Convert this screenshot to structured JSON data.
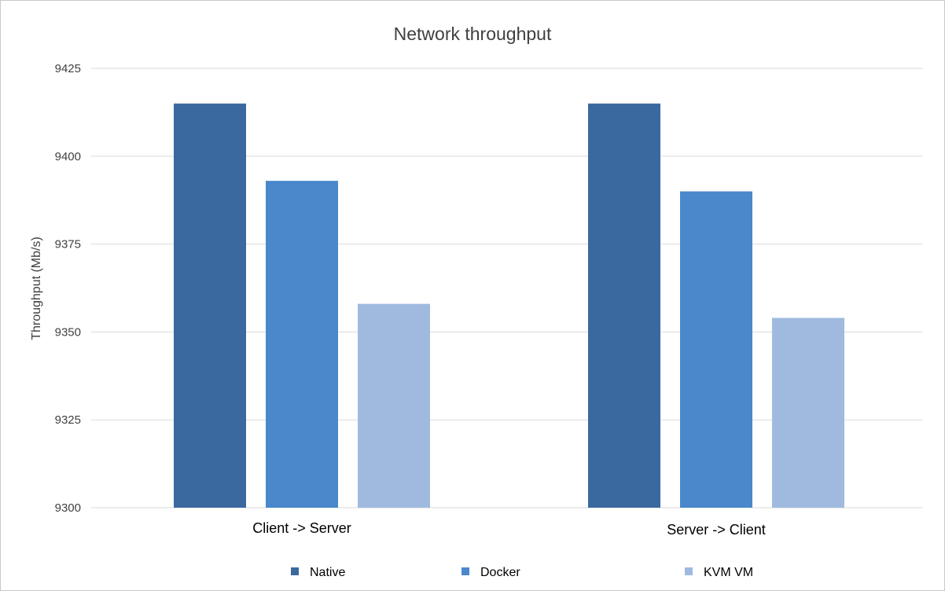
{
  "chart_data": {
    "type": "bar",
    "title": "Network throughput",
    "xlabel": "",
    "ylabel": "Throughput (Mb/s)",
    "categories": [
      "Client -> Server",
      "Server -> Client"
    ],
    "series": [
      {
        "name": "Native",
        "values": [
          9415,
          9415
        ],
        "color": "#3a69a0"
      },
      {
        "name": "Docker",
        "values": [
          9393,
          9390
        ],
        "color": "#4a88cb"
      },
      {
        "name": "KVM VM",
        "values": [
          9358,
          9354
        ],
        "color": "#a0badf"
      }
    ],
    "ylim": [
      9300,
      9425
    ],
    "yticks": [
      "9425",
      "9400",
      "9375",
      "9350",
      "9325",
      "9300"
    ],
    "grid": true,
    "legend_position": "bottom"
  }
}
